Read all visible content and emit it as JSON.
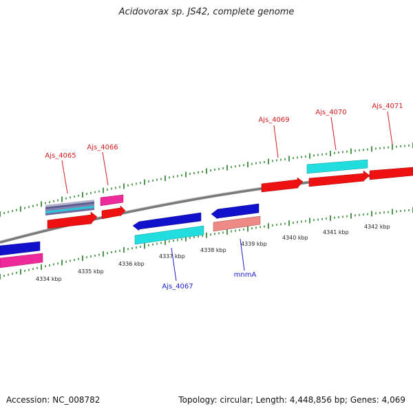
{
  "title": "Acidovorax sp. JS42, complete genome",
  "footer": {
    "accession": "Accession: NC_008782",
    "summary": "Topology: circular; Length: 4,448,856 bp; Genes: 4,069"
  },
  "colors": {
    "backbone": "#8c8c8c",
    "tick": "#1f7a1f",
    "forward_label": "#d41a1a",
    "reverse_label": "#1a1acc",
    "red": "#ee1111",
    "blue": "#1111cc",
    "cyan": "#22dddd",
    "magenta": "#ee2a9a",
    "salmon": "#ee8a86",
    "slate": "#6a6aa0"
  },
  "axis": {
    "labels": [
      "4334 kbp",
      "4335 kbp",
      "4336 kbp",
      "4337 kbp",
      "4338 kbp",
      "4339 kbp",
      "4340 kbp",
      "4341 kbp",
      "4342 kbp"
    ]
  },
  "forward_labels": [
    "Ajs_4065",
    "Ajs_4066",
    "Ajs_4069",
    "Ajs_4070",
    "Ajs_4071"
  ],
  "reverse_labels": [
    "Ajs_4067",
    "mnmA"
  ]
}
